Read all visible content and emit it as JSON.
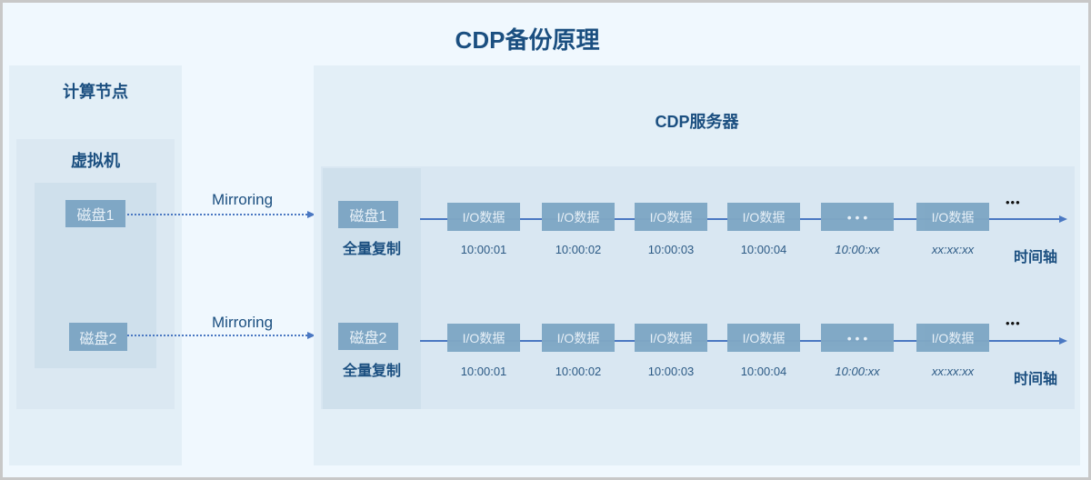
{
  "title": "CDP备份原理",
  "compute_node": {
    "title": "计算节点",
    "vm_title": "虚拟机",
    "disks": [
      "磁盘1",
      "磁盘2"
    ]
  },
  "mirror_label": "Mirroring",
  "cdp_server": {
    "title": "CDP服务器",
    "rows": [
      {
        "disk": "磁盘1",
        "full_copy": "全量复制",
        "io": [
          "I/O数据",
          "I/O数据",
          "I/O数据",
          "I/O数据",
          "• • •",
          "I/O数据"
        ],
        "times": [
          "10:00:01",
          "10:00:02",
          "10:00:03",
          "10:00:04",
          "10:00:xx",
          "xx:xx:xx"
        ],
        "ellipsis": "•••",
        "axis_label": "时间轴"
      },
      {
        "disk": "磁盘2",
        "full_copy": "全量复制",
        "io": [
          "I/O数据",
          "I/O数据",
          "I/O数据",
          "I/O数据",
          "• • •",
          "I/O数据"
        ],
        "times": [
          "10:00:01",
          "10:00:02",
          "10:00:03",
          "10:00:04",
          "10:00:xx",
          "xx:xx:xx"
        ],
        "ellipsis": "•••",
        "axis_label": "时间轴"
      }
    ]
  },
  "colors": {
    "title": "#1b4f80",
    "box": "#7fa7c5",
    "arrow": "#4a78c2"
  }
}
